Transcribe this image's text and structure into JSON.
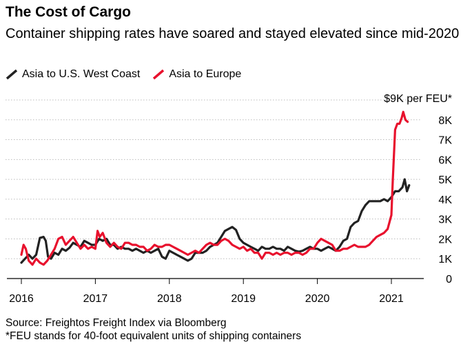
{
  "title": "The Cost of Cargo",
  "subtitle": "Container shipping rates have soared and stayed elevated since mid-2020",
  "unit_label": "$9K per FEU*",
  "footer": {
    "source": "Source: Freightos Freight Index via Bloomberg",
    "note": "*FEU stands for 40-foot equivalent units of shipping containers"
  },
  "colors": {
    "us_west": "#222222",
    "europe": "#e8112d",
    "grid": "#bbbbbb"
  },
  "chart_data": {
    "type": "line",
    "title": "The Cost of Cargo",
    "ylabel": "$9K per FEU*",
    "xlabel": "",
    "xlim": [
      2016.0,
      2021.35
    ],
    "ylim": [
      0,
      9000
    ],
    "grid": true,
    "legend_position": "top-left",
    "x_ticks": [
      2016,
      2017,
      2018,
      2019,
      2020,
      2021
    ],
    "x_tick_labels": [
      "2016",
      "2017",
      "2018",
      "2019",
      "2020",
      "2021"
    ],
    "y_ticks": [
      0,
      1000,
      2000,
      3000,
      4000,
      5000,
      6000,
      7000,
      8000
    ],
    "y_tick_labels": [
      "0",
      "1K",
      "2K",
      "3K",
      "4K",
      "5K",
      "6K",
      "7K",
      "8K"
    ],
    "series": [
      {
        "name": "Asia to U.S. West Coast",
        "color": "#222222",
        "points": [
          [
            2016.0,
            800
          ],
          [
            2016.05,
            1000
          ],
          [
            2016.1,
            1200
          ],
          [
            2016.15,
            1000
          ],
          [
            2016.2,
            1200
          ],
          [
            2016.25,
            2050
          ],
          [
            2016.3,
            2100
          ],
          [
            2016.33,
            1900
          ],
          [
            2016.36,
            1100
          ],
          [
            2016.4,
            1000
          ],
          [
            2016.45,
            1300
          ],
          [
            2016.5,
            1200
          ],
          [
            2016.55,
            1500
          ],
          [
            2016.6,
            1400
          ],
          [
            2016.65,
            1550
          ],
          [
            2016.7,
            1800
          ],
          [
            2016.75,
            1700
          ],
          [
            2016.8,
            1600
          ],
          [
            2016.85,
            1900
          ],
          [
            2016.9,
            1800
          ],
          [
            2016.95,
            1700
          ],
          [
            2017.0,
            1700
          ],
          [
            2017.05,
            2000
          ],
          [
            2017.1,
            1900
          ],
          [
            2017.15,
            2000
          ],
          [
            2017.2,
            1700
          ],
          [
            2017.25,
            1700
          ],
          [
            2017.3,
            1500
          ],
          [
            2017.35,
            1600
          ],
          [
            2017.4,
            1500
          ],
          [
            2017.45,
            1500
          ],
          [
            2017.5,
            1400
          ],
          [
            2017.55,
            1500
          ],
          [
            2017.6,
            1400
          ],
          [
            2017.65,
            1300
          ],
          [
            2017.7,
            1400
          ],
          [
            2017.75,
            1300
          ],
          [
            2017.8,
            1400
          ],
          [
            2017.85,
            1500
          ],
          [
            2017.9,
            1100
          ],
          [
            2017.95,
            1000
          ],
          [
            2018.0,
            1400
          ],
          [
            2018.05,
            1300
          ],
          [
            2018.1,
            1200
          ],
          [
            2018.15,
            1100
          ],
          [
            2018.2,
            1000
          ],
          [
            2018.25,
            900
          ],
          [
            2018.3,
            1000
          ],
          [
            2018.35,
            1300
          ],
          [
            2018.4,
            1300
          ],
          [
            2018.45,
            1300
          ],
          [
            2018.5,
            1400
          ],
          [
            2018.55,
            1600
          ],
          [
            2018.6,
            1700
          ],
          [
            2018.65,
            1800
          ],
          [
            2018.7,
            2100
          ],
          [
            2018.75,
            2400
          ],
          [
            2018.8,
            2500
          ],
          [
            2018.85,
            2600
          ],
          [
            2018.9,
            2450
          ],
          [
            2018.95,
            2000
          ],
          [
            2019.0,
            1800
          ],
          [
            2019.05,
            1700
          ],
          [
            2019.1,
            1600
          ],
          [
            2019.15,
            1500
          ],
          [
            2019.2,
            1400
          ],
          [
            2019.25,
            1600
          ],
          [
            2019.3,
            1500
          ],
          [
            2019.35,
            1500
          ],
          [
            2019.4,
            1600
          ],
          [
            2019.45,
            1500
          ],
          [
            2019.5,
            1500
          ],
          [
            2019.55,
            1400
          ],
          [
            2019.6,
            1600
          ],
          [
            2019.65,
            1500
          ],
          [
            2019.7,
            1400
          ],
          [
            2019.75,
            1350
          ],
          [
            2019.8,
            1400
          ],
          [
            2019.85,
            1500
          ],
          [
            2019.9,
            1600
          ],
          [
            2019.95,
            1500
          ],
          [
            2020.0,
            1500
          ],
          [
            2020.05,
            1400
          ],
          [
            2020.1,
            1500
          ],
          [
            2020.15,
            1600
          ],
          [
            2020.2,
            1500
          ],
          [
            2020.25,
            1400
          ],
          [
            2020.3,
            1600
          ],
          [
            2020.35,
            1900
          ],
          [
            2020.4,
            2000
          ],
          [
            2020.45,
            2600
          ],
          [
            2020.5,
            2800
          ],
          [
            2020.55,
            2900
          ],
          [
            2020.6,
            3400
          ],
          [
            2020.65,
            3700
          ],
          [
            2020.7,
            3900
          ],
          [
            2020.75,
            3900
          ],
          [
            2020.8,
            3900
          ],
          [
            2020.85,
            3900
          ],
          [
            2020.9,
            4000
          ],
          [
            2020.95,
            3900
          ],
          [
            2021.0,
            4100
          ],
          [
            2021.05,
            4400
          ],
          [
            2021.1,
            4400
          ],
          [
            2021.15,
            4600
          ],
          [
            2021.18,
            5000
          ],
          [
            2021.21,
            4400
          ],
          [
            2021.24,
            4700
          ]
        ]
      },
      {
        "name": "Asia to Europe",
        "color": "#e8112d",
        "points": [
          [
            2016.0,
            1200
          ],
          [
            2016.03,
            1700
          ],
          [
            2016.06,
            1500
          ],
          [
            2016.1,
            900
          ],
          [
            2016.15,
            700
          ],
          [
            2016.2,
            1000
          ],
          [
            2016.25,
            800
          ],
          [
            2016.3,
            700
          ],
          [
            2016.35,
            900
          ],
          [
            2016.4,
            1200
          ],
          [
            2016.45,
            1500
          ],
          [
            2016.5,
            2000
          ],
          [
            2016.55,
            2100
          ],
          [
            2016.6,
            1700
          ],
          [
            2016.65,
            1900
          ],
          [
            2016.7,
            2100
          ],
          [
            2016.75,
            1800
          ],
          [
            2016.8,
            1500
          ],
          [
            2016.85,
            1700
          ],
          [
            2016.9,
            1500
          ],
          [
            2016.95,
            1600
          ],
          [
            2017.0,
            1500
          ],
          [
            2017.03,
            2400
          ],
          [
            2017.06,
            2100
          ],
          [
            2017.1,
            2300
          ],
          [
            2017.15,
            1800
          ],
          [
            2017.2,
            1600
          ],
          [
            2017.25,
            1800
          ],
          [
            2017.3,
            1600
          ],
          [
            2017.35,
            1500
          ],
          [
            2017.4,
            1800
          ],
          [
            2017.45,
            1800
          ],
          [
            2017.5,
            1700
          ],
          [
            2017.55,
            1700
          ],
          [
            2017.6,
            1600
          ],
          [
            2017.65,
            1600
          ],
          [
            2017.7,
            1400
          ],
          [
            2017.75,
            1500
          ],
          [
            2017.8,
            1700
          ],
          [
            2017.85,
            1600
          ],
          [
            2017.9,
            1600
          ],
          [
            2017.95,
            1700
          ],
          [
            2018.0,
            1700
          ],
          [
            2018.05,
            1600
          ],
          [
            2018.1,
            1500
          ],
          [
            2018.15,
            1400
          ],
          [
            2018.2,
            1300
          ],
          [
            2018.25,
            1200
          ],
          [
            2018.3,
            1300
          ],
          [
            2018.35,
            1400
          ],
          [
            2018.4,
            1300
          ],
          [
            2018.45,
            1500
          ],
          [
            2018.5,
            1700
          ],
          [
            2018.55,
            1800
          ],
          [
            2018.6,
            1700
          ],
          [
            2018.65,
            1700
          ],
          [
            2018.7,
            1900
          ],
          [
            2018.75,
            2000
          ],
          [
            2018.8,
            1900
          ],
          [
            2018.85,
            1700
          ],
          [
            2018.9,
            1600
          ],
          [
            2018.95,
            1500
          ],
          [
            2019.0,
            1600
          ],
          [
            2019.05,
            1400
          ],
          [
            2019.1,
            1500
          ],
          [
            2019.15,
            1300
          ],
          [
            2019.2,
            1300
          ],
          [
            2019.25,
            1000
          ],
          [
            2019.3,
            1300
          ],
          [
            2019.35,
            1300
          ],
          [
            2019.4,
            1200
          ],
          [
            2019.45,
            1300
          ],
          [
            2019.5,
            1200
          ],
          [
            2019.55,
            1300
          ],
          [
            2019.6,
            1300
          ],
          [
            2019.65,
            1200
          ],
          [
            2019.7,
            1300
          ],
          [
            2019.75,
            1300
          ],
          [
            2019.8,
            1200
          ],
          [
            2019.85,
            1300
          ],
          [
            2019.9,
            1500
          ],
          [
            2019.95,
            1500
          ],
          [
            2020.0,
            1800
          ],
          [
            2020.05,
            2000
          ],
          [
            2020.1,
            1900
          ],
          [
            2020.15,
            1800
          ],
          [
            2020.2,
            1700
          ],
          [
            2020.25,
            1400
          ],
          [
            2020.3,
            1400
          ],
          [
            2020.35,
            1500
          ],
          [
            2020.4,
            1500
          ],
          [
            2020.45,
            1600
          ],
          [
            2020.5,
            1700
          ],
          [
            2020.55,
            1600
          ],
          [
            2020.6,
            1600
          ],
          [
            2020.65,
            1600
          ],
          [
            2020.7,
            1700
          ],
          [
            2020.75,
            1900
          ],
          [
            2020.8,
            2100
          ],
          [
            2020.85,
            2200
          ],
          [
            2020.9,
            2300
          ],
          [
            2020.95,
            2500
          ],
          [
            2021.0,
            3200
          ],
          [
            2021.02,
            5000
          ],
          [
            2021.05,
            7500
          ],
          [
            2021.08,
            7800
          ],
          [
            2021.11,
            7800
          ],
          [
            2021.14,
            8100
          ],
          [
            2021.16,
            8400
          ],
          [
            2021.19,
            8000
          ],
          [
            2021.22,
            7900
          ]
        ]
      }
    ]
  }
}
